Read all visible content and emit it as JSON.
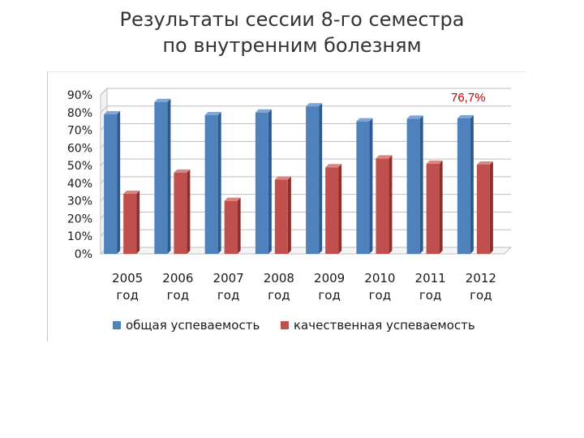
{
  "title_lines": [
    "Результаты сессии 8-го семестра",
    "по внутренним болезням"
  ],
  "annotation": "76,7%",
  "colors": {
    "series1": "#4f81bd",
    "series1_side": "#2f5a8e",
    "series1_top": "#7ea5d6",
    "series2": "#c0504d",
    "series2_side": "#8c2f2d",
    "series2_top": "#d98583",
    "annotation": "#c00000"
  },
  "chart_data": {
    "type": "bar",
    "categories": [
      [
        "2005",
        "год"
      ],
      [
        "2006",
        "год"
      ],
      [
        "2007",
        "год"
      ],
      [
        "2008",
        "год"
      ],
      [
        "2009",
        "год"
      ],
      [
        "2010",
        "год"
      ],
      [
        "2011",
        "год"
      ],
      [
        "2012",
        "год"
      ]
    ],
    "series": [
      {
        "name": "общая успеваемость",
        "values": [
          79,
          86,
          78.5,
          80,
          83.5,
          75,
          76.5,
          76.7
        ]
      },
      {
        "name": "качественная успеваемость",
        "values": [
          34,
          46,
          30,
          42,
          49,
          54,
          51,
          50.5
        ]
      }
    ],
    "ylim": [
      0,
      90
    ],
    "yticks": [
      "0%",
      "10%",
      "20%",
      "30%",
      "40%",
      "50%",
      "60%",
      "70%",
      "80%",
      "90%"
    ],
    "grid": true,
    "legend_position": "bottom"
  }
}
